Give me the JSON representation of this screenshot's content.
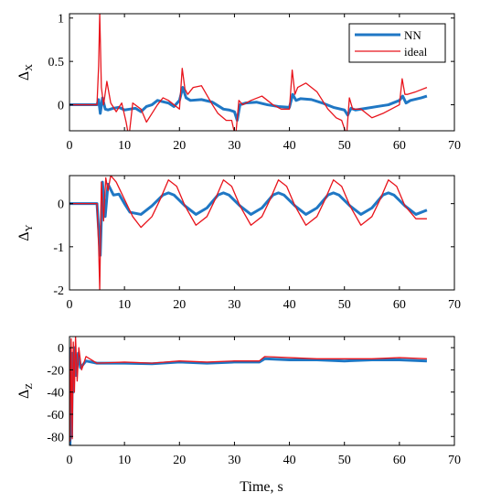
{
  "colors": {
    "nn": "#1f77c4",
    "ideal": "#e8141c",
    "axis": "#000000"
  },
  "xlabel": "Time, s",
  "chart_data": [
    {
      "type": "line",
      "ylabel": "Δ",
      "ylabel_sub": "X",
      "xlim": [
        0,
        70
      ],
      "ylim": [
        -0.3,
        1.05
      ],
      "xticks": [
        0,
        10,
        20,
        30,
        40,
        50,
        60,
        70
      ],
      "yticks": [
        0,
        0.5,
        1
      ],
      "ytick_labels": [
        "0",
        "0.5",
        "1"
      ],
      "legend": {
        "position": "top-right",
        "entries": [
          "NN",
          "ideal"
        ]
      },
      "series": [
        {
          "name": "NN",
          "x": [
            0,
            5,
            5.3,
            5.6,
            6,
            6.5,
            7,
            8,
            9,
            10,
            11,
            12,
            13,
            14,
            15,
            16,
            18,
            19,
            20,
            20.6,
            21.2,
            22,
            24,
            26,
            28,
            29,
            30,
            30.5,
            31,
            32,
            34,
            36,
            38,
            40,
            40.6,
            41.2,
            42,
            44,
            46,
            48,
            50,
            50.6,
            51.2,
            52,
            54,
            56,
            58,
            60,
            60.6,
            61.2,
            62,
            64,
            65
          ],
          "values": [
            0,
            0,
            0.06,
            -0.1,
            0.08,
            -0.05,
            -0.06,
            -0.04,
            -0.03,
            -0.06,
            -0.05,
            -0.04,
            -0.08,
            -0.02,
            0.0,
            0.05,
            0.02,
            -0.02,
            0.05,
            0.2,
            0.08,
            0.05,
            0.06,
            0.03,
            -0.05,
            -0.06,
            -0.08,
            -0.18,
            0.0,
            0.02,
            0.03,
            0.0,
            -0.02,
            -0.03,
            0.12,
            0.05,
            0.07,
            0.06,
            0.02,
            -0.03,
            -0.06,
            -0.12,
            -0.04,
            -0.06,
            -0.04,
            -0.02,
            0.0,
            0.05,
            0.1,
            0.02,
            0.05,
            0.08,
            0.1
          ]
        },
        {
          "name": "ideal",
          "x": [
            0,
            5,
            5.3,
            5.5,
            5.8,
            6.2,
            6.8,
            7.5,
            8.5,
            9.5,
            10.3,
            10.8,
            11.5,
            13,
            14,
            15,
            16,
            17,
            18,
            20,
            20.5,
            21,
            21.5,
            22.5,
            24,
            26,
            27,
            28.5,
            29.5,
            30.2,
            30.8,
            31.5,
            33,
            35,
            37,
            38.5,
            40,
            40.5,
            41,
            41.5,
            43,
            45,
            47,
            48.5,
            49.5,
            50.4,
            50.9,
            51.5,
            53,
            55,
            57,
            58.5,
            60,
            60.5,
            61,
            61.5,
            63,
            65
          ],
          "values": [
            0,
            0,
            0.45,
            1.05,
            0.2,
            0.0,
            0.27,
            0.02,
            -0.08,
            0.02,
            -0.2,
            -0.38,
            0.02,
            -0.05,
            -0.2,
            -0.1,
            0.0,
            0.08,
            0.05,
            -0.05,
            0.42,
            0.18,
            0.12,
            0.2,
            0.22,
            0.0,
            -0.1,
            -0.18,
            -0.18,
            -0.38,
            0.05,
            0.0,
            0.05,
            0.1,
            0.0,
            -0.05,
            -0.05,
            0.4,
            0.12,
            0.2,
            0.25,
            0.15,
            -0.05,
            -0.15,
            -0.18,
            -0.35,
            0.08,
            -0.05,
            -0.05,
            -0.15,
            -0.1,
            -0.05,
            0.0,
            0.3,
            0.12,
            0.12,
            0.15,
            0.2
          ]
        }
      ]
    },
    {
      "type": "line",
      "ylabel": "Δ",
      "ylabel_sub": "Y",
      "xlim": [
        0,
        70
      ],
      "ylim": [
        -2,
        0.65
      ],
      "xticks": [
        0,
        10,
        20,
        30,
        40,
        50,
        60,
        70
      ],
      "yticks": [
        -2,
        -1,
        0
      ],
      "ytick_labels": [
        "-2",
        "-1",
        "0"
      ],
      "series": [
        {
          "name": "NN",
          "x": [
            0,
            5,
            5.3,
            5.6,
            6,
            6.5,
            7,
            8,
            9,
            10,
            11,
            13,
            15,
            17,
            18,
            19,
            21,
            23,
            25,
            27,
            28,
            29,
            31,
            33,
            35,
            37,
            38,
            39,
            41,
            43,
            45,
            47,
            48,
            49,
            51,
            53,
            55,
            57,
            58,
            59,
            61,
            63,
            65
          ],
          "values": [
            0,
            0,
            -0.6,
            -1.2,
            0.5,
            -0.3,
            0.45,
            0.2,
            0.22,
            0.0,
            -0.2,
            -0.25,
            -0.05,
            0.2,
            0.25,
            0.2,
            -0.05,
            -0.25,
            -0.1,
            0.2,
            0.25,
            0.2,
            -0.05,
            -0.25,
            -0.1,
            0.2,
            0.25,
            0.2,
            -0.05,
            -0.25,
            -0.1,
            0.2,
            0.25,
            0.2,
            -0.05,
            -0.25,
            -0.1,
            0.2,
            0.25,
            0.2,
            -0.05,
            -0.25,
            -0.15
          ]
        },
        {
          "name": "ideal",
          "x": [
            0,
            5,
            5.3,
            5.5,
            5.8,
            6.2,
            6.6,
            7,
            7.5,
            8.5,
            10,
            11.5,
            13,
            15,
            16.5,
            18,
            19.5,
            21,
            23,
            25,
            26.5,
            28,
            29.5,
            31,
            33,
            35,
            36.5,
            38,
            39.5,
            41,
            43,
            45,
            46.5,
            48,
            49.5,
            51,
            53,
            55,
            56.5,
            58,
            59.5,
            61,
            63,
            65
          ],
          "values": [
            0,
            0,
            -1.0,
            -2.0,
            0.5,
            -0.4,
            0.6,
            0.3,
            0.65,
            0.5,
            0.1,
            -0.3,
            -0.55,
            -0.3,
            0.1,
            0.55,
            0.4,
            -0.05,
            -0.5,
            -0.3,
            0.1,
            0.55,
            0.4,
            -0.05,
            -0.5,
            -0.3,
            0.1,
            0.55,
            0.4,
            -0.05,
            -0.5,
            -0.3,
            0.1,
            0.55,
            0.4,
            -0.05,
            -0.5,
            -0.3,
            0.1,
            0.55,
            0.4,
            -0.05,
            -0.35,
            -0.35
          ]
        }
      ]
    },
    {
      "type": "line",
      "ylabel": "Δ",
      "ylabel_sub": "Z",
      "xlim": [
        0,
        70
      ],
      "ylim": [
        -88,
        10
      ],
      "xticks": [
        0,
        10,
        20,
        30,
        40,
        50,
        60,
        70
      ],
      "yticks": [
        -80,
        -60,
        -40,
        -20,
        0
      ],
      "ytick_labels": [
        "-80",
        "-60",
        "-40",
        "-20",
        "0"
      ],
      "series": [
        {
          "name": "NN",
          "x": [
            0,
            0.1,
            0.25,
            0.4,
            0.55,
            0.7,
            0.9,
            1.2,
            1.6,
            2,
            3,
            5,
            10,
            15,
            20,
            25,
            30,
            34.5,
            35.5,
            40,
            45,
            50,
            55,
            60,
            65
          ],
          "values": [
            0,
            -88,
            -20,
            -80,
            -5,
            -40,
            0,
            -25,
            -5,
            -18,
            -12,
            -14,
            -14,
            -14.5,
            -13,
            -14,
            -13,
            -13,
            -10,
            -11,
            -11,
            -12,
            -11,
            -11,
            -12
          ]
        },
        {
          "name": "ideal",
          "x": [
            0,
            0.1,
            0.3,
            0.5,
            0.7,
            0.9,
            1.1,
            1.4,
            1.7,
            2.2,
            3,
            5,
            10,
            15,
            20,
            25,
            30,
            34.5,
            35.5,
            40,
            45,
            50,
            55,
            60,
            65
          ],
          "values": [
            0,
            -84,
            8,
            -82,
            5,
            -40,
            10,
            -30,
            0,
            -20,
            -8,
            -14,
            -13,
            -14,
            -12,
            -13,
            -12,
            -12,
            -8,
            -9,
            -10,
            -10,
            -10,
            -9,
            -10
          ]
        }
      ]
    }
  ]
}
